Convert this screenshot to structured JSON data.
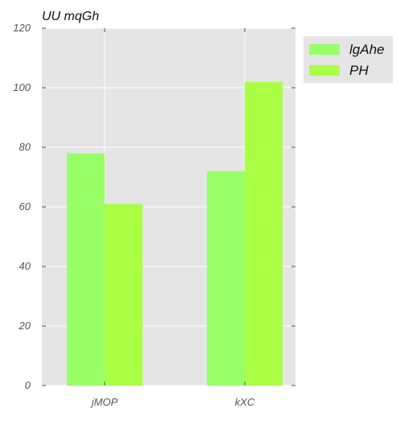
{
  "chart_data": {
    "type": "bar",
    "title": "UU  mqGh",
    "xlabel": "",
    "ylabel": "",
    "categories": [
      "jMOP",
      "kXC"
    ],
    "series": [
      {
        "name": "lgAhe",
        "values": [
          78,
          72
        ],
        "color": "#99ff66"
      },
      {
        "name": "PH",
        "values": [
          61,
          102
        ],
        "color": "#aaff44"
      }
    ],
    "ylim": [
      0,
      120
    ],
    "yticks": [
      0,
      20,
      40,
      60,
      80,
      100,
      120
    ],
    "grid": true,
    "legend_position": "outside-right-top",
    "plot_background": "#e5e5e5",
    "gridline_color": "#ffffff"
  }
}
